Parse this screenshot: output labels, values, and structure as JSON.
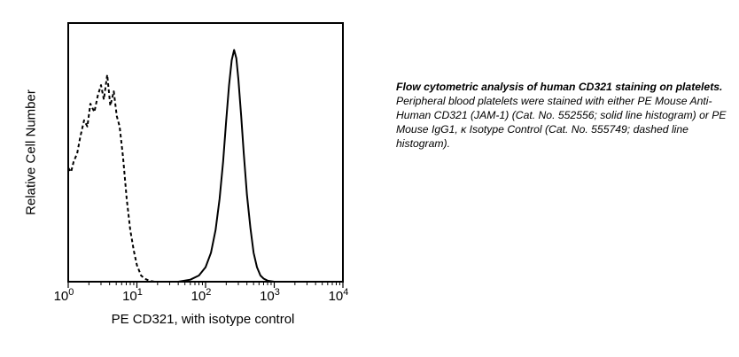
{
  "chart_data": {
    "type": "line",
    "xlabel": "PE CD321, with isotype control",
    "ylabel": "Relative Cell Number",
    "xscale": "log",
    "xlim": [
      1,
      10000
    ],
    "ylim": [
      0,
      1.25
    ],
    "x_ticks": [
      {
        "value": 1,
        "base": "10",
        "exp": "0"
      },
      {
        "value": 10,
        "base": "10",
        "exp": "1"
      },
      {
        "value": 100,
        "base": "10",
        "exp": "2"
      },
      {
        "value": 1000,
        "base": "10",
        "exp": "3"
      },
      {
        "value": 10000,
        "base": "10",
        "exp": "4"
      }
    ],
    "grid": false,
    "series": [
      {
        "style": "dashed",
        "x": [
          1.0,
          1.1,
          1.2,
          1.35,
          1.5,
          1.7,
          1.9,
          2.1,
          2.4,
          2.7,
          3.0,
          3.3,
          3.7,
          4.1,
          4.6,
          5.1,
          5.6,
          6.3,
          7.1,
          8.0,
          9.0,
          10.0,
          11.5,
          13.0,
          15.0,
          18.0,
          22.0,
          30.0,
          50.0,
          100.0,
          300.0,
          1000.0,
          2100.0
        ],
        "y": [
          0.55,
          0.53,
          0.58,
          0.62,
          0.7,
          0.78,
          0.75,
          0.86,
          0.82,
          0.9,
          0.95,
          0.88,
          1.0,
          0.85,
          0.92,
          0.8,
          0.75,
          0.6,
          0.4,
          0.25,
          0.15,
          0.08,
          0.03,
          0.015,
          0.005,
          0.0,
          0.0,
          0.0,
          0.0,
          0.0,
          0.0,
          0.0,
          0.0
        ]
      },
      {
        "style": "solid",
        "x": [
          1.0,
          10.0,
          40.0,
          60.0,
          80.0,
          100.0,
          120.0,
          140.0,
          160.0,
          180.0,
          200.0,
          220.0,
          240.0,
          260.0,
          280.0,
          300.0,
          330.0,
          360.0,
          400.0,
          450.0,
          500.0,
          560.0,
          630.0,
          700.0,
          800.0,
          1000.0,
          1300.0,
          2100.0
        ],
        "y": [
          0.0,
          0.0,
          0.0,
          0.01,
          0.03,
          0.07,
          0.14,
          0.25,
          0.4,
          0.58,
          0.78,
          0.95,
          1.07,
          1.12,
          1.08,
          0.98,
          0.8,
          0.62,
          0.42,
          0.26,
          0.14,
          0.07,
          0.03,
          0.015,
          0.005,
          0.0,
          0.0,
          0.0
        ]
      }
    ]
  },
  "caption": {
    "bold": "Flow cytometric analysis of human CD321 staining on platelets.",
    "text": " Peripheral blood platelets were stained with either PE Mouse Anti-Human CD321 (JAM-1) (Cat. No. 552556; solid line histogram) or PE Mouse IgG1, κ Isotype Control (Cat. No. 555749; dashed line histogram)."
  }
}
